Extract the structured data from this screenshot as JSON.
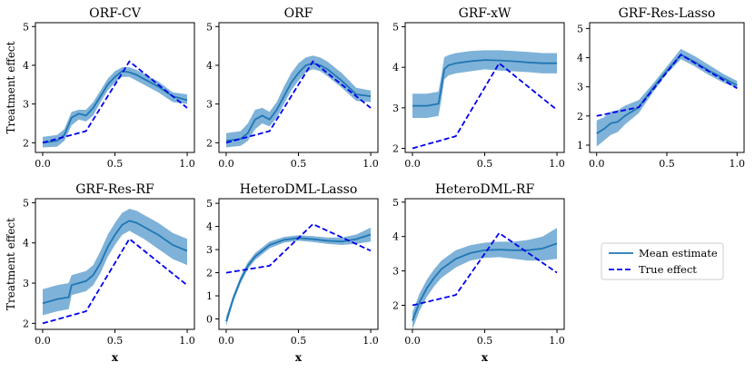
{
  "legend": {
    "mean_label": "Mean estimate",
    "true_label": "True effect"
  },
  "colors": {
    "mean": "#1f77b4",
    "band": "#7fb2d8",
    "true": "#0000ee",
    "axis": "#000000"
  },
  "chart_data": [
    {
      "type": "line",
      "title": "ORF-CV",
      "xlabel": "",
      "ylabel": "Treatment effect",
      "xlim": [
        -0.05,
        1.05
      ],
      "ylim": [
        1.75,
        5.1
      ],
      "xticks": [
        "0.0",
        "0.5",
        "1.0"
      ],
      "yticks": [
        2,
        3,
        4,
        5
      ],
      "true_effect": {
        "x": [
          0,
          0.3,
          0.6,
          1.0
        ],
        "y": [
          2.0,
          2.3,
          4.1,
          2.9
        ]
      },
      "mean_estimate": {
        "x": [
          0,
          0.1,
          0.15,
          0.2,
          0.25,
          0.3,
          0.35,
          0.4,
          0.45,
          0.5,
          0.55,
          0.6,
          0.65,
          0.7,
          0.8,
          0.9,
          1.0
        ],
        "y": [
          2.0,
          2.05,
          2.2,
          2.65,
          2.75,
          2.7,
          2.9,
          3.2,
          3.5,
          3.7,
          3.85,
          3.82,
          3.75,
          3.65,
          3.45,
          3.2,
          3.1
        ],
        "lower": [
          1.88,
          1.9,
          2.05,
          2.45,
          2.6,
          2.55,
          2.7,
          3.05,
          3.35,
          3.55,
          3.7,
          3.7,
          3.6,
          3.5,
          3.3,
          3.05,
          3.0
        ],
        "upper": [
          2.15,
          2.2,
          2.35,
          2.8,
          2.85,
          2.85,
          3.05,
          3.35,
          3.65,
          3.85,
          3.95,
          3.95,
          3.88,
          3.78,
          3.58,
          3.3,
          3.25
        ]
      }
    },
    {
      "type": "line",
      "title": "ORF",
      "xlabel": "",
      "ylabel": "",
      "xlim": [
        -0.05,
        1.05
      ],
      "ylim": [
        1.75,
        5.1
      ],
      "xticks": [
        "0.0",
        "0.5",
        "1.0"
      ],
      "yticks": [
        2,
        3,
        4,
        5
      ],
      "true_effect": {
        "x": [
          0,
          0.3,
          0.6,
          1.0
        ],
        "y": [
          2.0,
          2.3,
          4.1,
          2.9
        ]
      },
      "mean_estimate": {
        "x": [
          0,
          0.1,
          0.15,
          0.2,
          0.25,
          0.3,
          0.35,
          0.4,
          0.45,
          0.5,
          0.55,
          0.6,
          0.65,
          0.7,
          0.8,
          0.9,
          1.0
        ],
        "y": [
          2.05,
          2.1,
          2.25,
          2.6,
          2.7,
          2.6,
          2.85,
          3.2,
          3.55,
          3.8,
          4.0,
          4.05,
          4.0,
          3.9,
          3.6,
          3.25,
          3.2
        ],
        "lower": [
          1.88,
          1.92,
          2.05,
          2.35,
          2.5,
          2.42,
          2.65,
          3.0,
          3.35,
          3.6,
          3.82,
          3.9,
          3.85,
          3.72,
          3.42,
          3.08,
          3.05
        ],
        "upper": [
          2.25,
          2.3,
          2.5,
          2.85,
          2.9,
          2.8,
          3.05,
          3.45,
          3.8,
          4.05,
          4.2,
          4.25,
          4.2,
          4.1,
          3.8,
          3.42,
          3.35
        ]
      }
    },
    {
      "type": "line",
      "title": "GRF-xW",
      "xlabel": "",
      "ylabel": "",
      "xlim": [
        -0.05,
        1.05
      ],
      "ylim": [
        1.9,
        5.1
      ],
      "xticks": [
        "0.0",
        "0.5",
        "1.0"
      ],
      "yticks": [
        2,
        3,
        4,
        5
      ],
      "true_effect": {
        "x": [
          0,
          0.3,
          0.6,
          1.0
        ],
        "y": [
          2.0,
          2.3,
          4.1,
          2.95
        ]
      },
      "mean_estimate": {
        "x": [
          0,
          0.1,
          0.18,
          0.2,
          0.22,
          0.25,
          0.3,
          0.4,
          0.5,
          0.6,
          0.7,
          0.8,
          0.9,
          1.0
        ],
        "y": [
          3.05,
          3.05,
          3.1,
          3.5,
          3.95,
          4.05,
          4.1,
          4.15,
          4.18,
          4.17,
          4.15,
          4.12,
          4.1,
          4.1
        ],
        "lower": [
          2.75,
          2.75,
          2.8,
          3.2,
          3.7,
          3.8,
          3.85,
          3.9,
          3.95,
          3.92,
          3.9,
          3.88,
          3.85,
          3.85
        ],
        "upper": [
          3.35,
          3.35,
          3.4,
          3.8,
          4.25,
          4.3,
          4.35,
          4.4,
          4.42,
          4.42,
          4.4,
          4.38,
          4.35,
          4.35
        ]
      }
    },
    {
      "type": "line",
      "title": "GRF-Res-Lasso",
      "xlabel": "",
      "ylabel": "",
      "xlim": [
        -0.05,
        1.05
      ],
      "ylim": [
        0.75,
        5.2
      ],
      "xticks": [
        "0.0",
        "0.5",
        "1.0"
      ],
      "yticks": [
        1,
        2,
        3,
        4,
        5
      ],
      "true_effect": {
        "x": [
          0,
          0.3,
          0.6,
          1.0
        ],
        "y": [
          2.0,
          2.3,
          4.1,
          2.95
        ]
      },
      "mean_estimate": {
        "x": [
          0,
          0.05,
          0.1,
          0.15,
          0.2,
          0.25,
          0.3,
          0.4,
          0.5,
          0.6,
          0.7,
          0.8,
          0.9,
          1.0
        ],
        "y": [
          1.4,
          1.55,
          1.75,
          1.8,
          2.0,
          2.15,
          2.3,
          2.95,
          3.55,
          4.1,
          3.85,
          3.55,
          3.3,
          3.05
        ],
        "lower": [
          0.95,
          1.15,
          1.35,
          1.45,
          1.7,
          1.9,
          2.1,
          2.8,
          3.45,
          3.95,
          3.7,
          3.4,
          3.15,
          2.95
        ],
        "upper": [
          1.85,
          1.95,
          2.15,
          2.2,
          2.35,
          2.45,
          2.55,
          3.1,
          3.7,
          4.3,
          4.05,
          3.75,
          3.45,
          3.2
        ]
      }
    },
    {
      "type": "line",
      "title": "GRF-Res-RF",
      "xlabel": "x",
      "ylabel": "Treatment effect",
      "xlim": [
        -0.05,
        1.05
      ],
      "ylim": [
        1.85,
        5.1
      ],
      "xticks": [
        "0.0",
        "0.5",
        "1.0"
      ],
      "yticks": [
        2,
        3,
        4,
        5
      ],
      "true_effect": {
        "x": [
          0,
          0.3,
          0.6,
          1.0
        ],
        "y": [
          2.0,
          2.3,
          4.1,
          2.95
        ]
      },
      "mean_estimate": {
        "x": [
          0,
          0.1,
          0.18,
          0.2,
          0.25,
          0.3,
          0.35,
          0.4,
          0.45,
          0.5,
          0.55,
          0.6,
          0.65,
          0.7,
          0.8,
          0.9,
          1.0
        ],
        "y": [
          2.5,
          2.6,
          2.65,
          2.95,
          3.0,
          3.05,
          3.2,
          3.5,
          3.9,
          4.2,
          4.45,
          4.55,
          4.5,
          4.4,
          4.2,
          3.95,
          3.8
        ],
        "lower": [
          2.2,
          2.3,
          2.35,
          2.7,
          2.75,
          2.8,
          2.95,
          3.25,
          3.65,
          3.95,
          4.2,
          4.3,
          4.2,
          4.1,
          3.85,
          3.6,
          3.45
        ],
        "upper": [
          2.85,
          2.95,
          3.0,
          3.2,
          3.25,
          3.3,
          3.45,
          3.8,
          4.2,
          4.5,
          4.75,
          4.85,
          4.8,
          4.7,
          4.5,
          4.25,
          4.1
        ]
      }
    },
    {
      "type": "line",
      "title": "HeteroDML-Lasso",
      "xlabel": "x",
      "ylabel": "",
      "xlim": [
        -0.05,
        1.05
      ],
      "ylim": [
        -0.45,
        5.2
      ],
      "xticks": [
        "0.0",
        "0.5",
        "1.0"
      ],
      "yticks": [
        0,
        1,
        2,
        3,
        4,
        5
      ],
      "true_effect": {
        "x": [
          0,
          0.3,
          0.6,
          1.0
        ],
        "y": [
          2.0,
          2.3,
          4.1,
          2.95
        ]
      },
      "mean_estimate": {
        "x": [
          0,
          0.05,
          0.1,
          0.15,
          0.2,
          0.3,
          0.4,
          0.5,
          0.6,
          0.7,
          0.8,
          0.9,
          1.0
        ],
        "y": [
          -0.1,
          0.9,
          1.7,
          2.3,
          2.7,
          3.2,
          3.42,
          3.5,
          3.45,
          3.38,
          3.35,
          3.45,
          3.65
        ],
        "lower": [
          -0.3,
          0.75,
          1.55,
          2.15,
          2.55,
          3.05,
          3.3,
          3.38,
          3.33,
          3.25,
          3.2,
          3.25,
          3.35
        ],
        "upper": [
          0.1,
          1.05,
          1.85,
          2.45,
          2.85,
          3.35,
          3.55,
          3.62,
          3.58,
          3.52,
          3.52,
          3.65,
          3.95
        ]
      }
    },
    {
      "type": "line",
      "title": "HeteroDML-RF",
      "xlabel": "x",
      "ylabel": "",
      "xlim": [
        -0.05,
        1.05
      ],
      "ylim": [
        1.3,
        5.1
      ],
      "xticks": [
        "0.0",
        "0.5",
        "1.0"
      ],
      "yticks": [
        2,
        3,
        4,
        5
      ],
      "true_effect": {
        "x": [
          0,
          0.3,
          0.6,
          1.0
        ],
        "y": [
          2.0,
          2.3,
          4.1,
          2.95
        ]
      },
      "mean_estimate": {
        "x": [
          0,
          0.05,
          0.1,
          0.15,
          0.2,
          0.3,
          0.4,
          0.5,
          0.6,
          0.7,
          0.8,
          0.9,
          1.0
        ],
        "y": [
          1.55,
          2.1,
          2.5,
          2.8,
          3.05,
          3.35,
          3.52,
          3.6,
          3.62,
          3.6,
          3.6,
          3.65,
          3.8
        ],
        "lower": [
          1.3,
          1.85,
          2.25,
          2.55,
          2.8,
          3.1,
          3.3,
          3.38,
          3.4,
          3.35,
          3.3,
          3.3,
          3.35
        ],
        "upper": [
          1.8,
          2.35,
          2.75,
          3.05,
          3.3,
          3.6,
          3.75,
          3.82,
          3.85,
          3.85,
          3.9,
          4.0,
          4.25
        ]
      }
    }
  ]
}
